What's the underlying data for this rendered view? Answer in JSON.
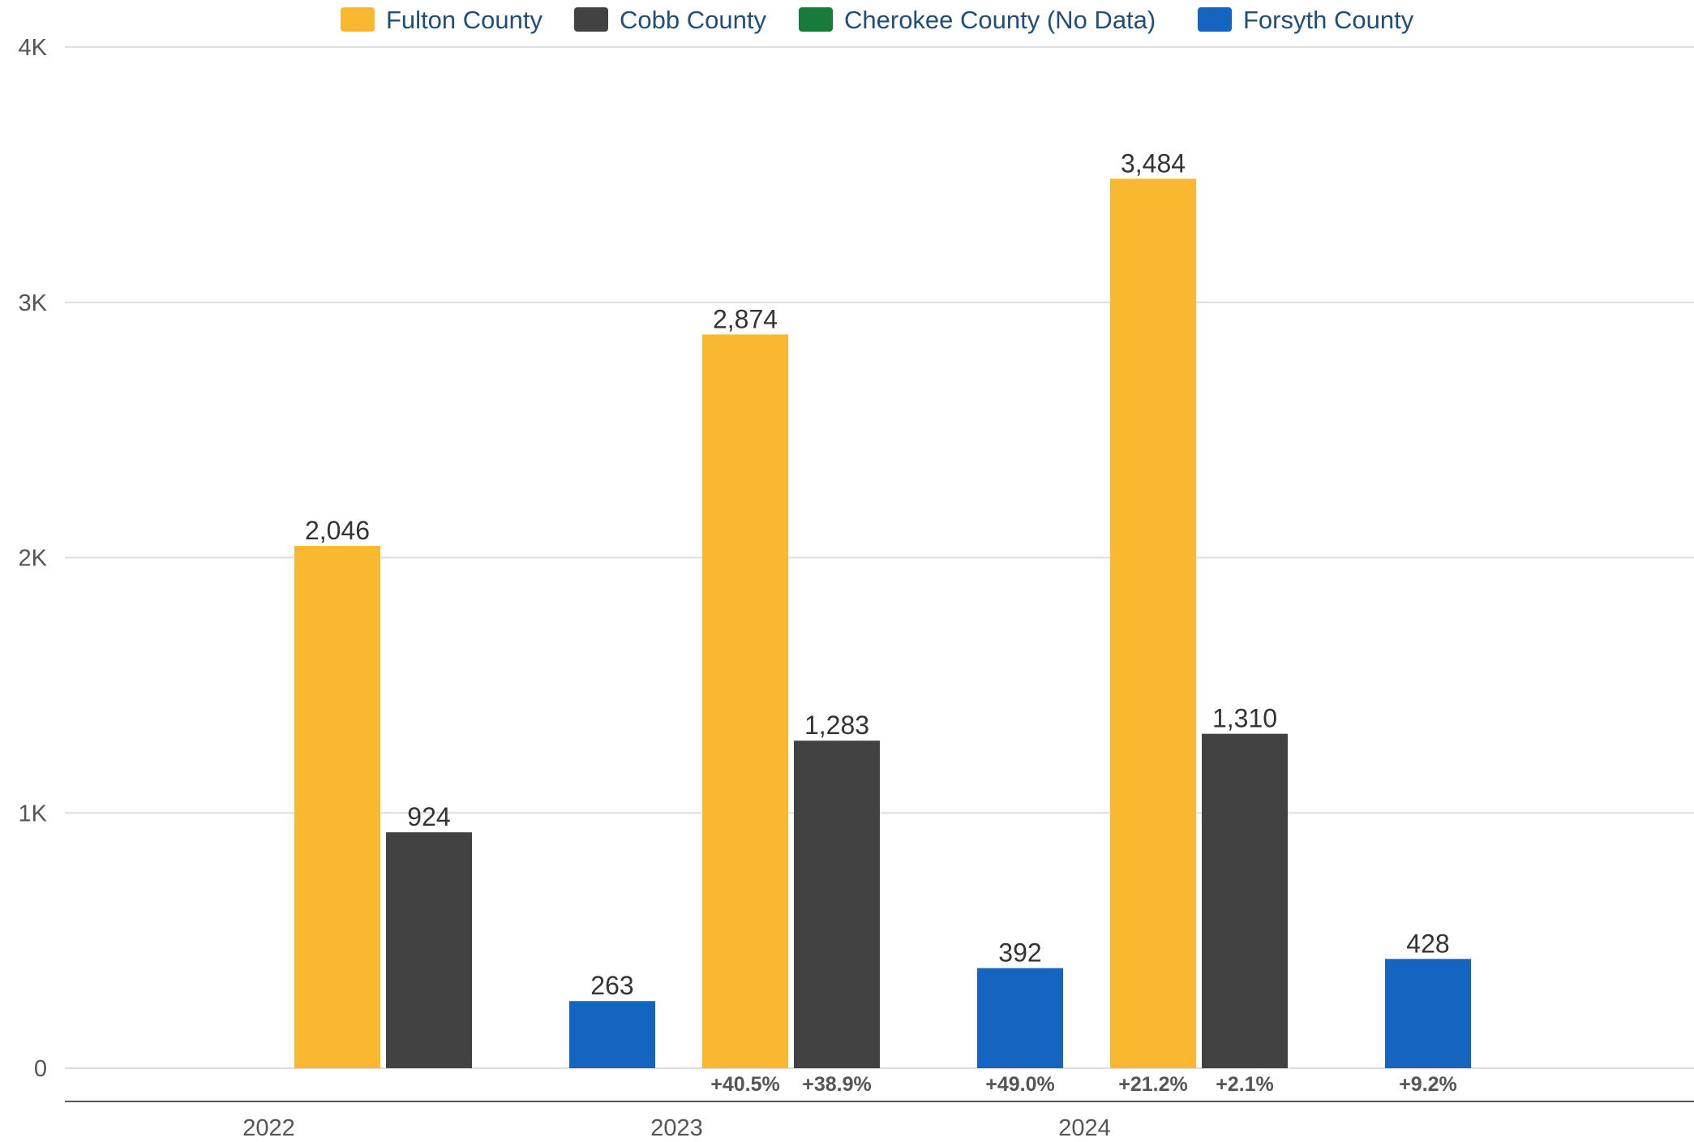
{
  "chart_data": {
    "type": "bar",
    "categories": [
      "2022",
      "2023",
      "2024"
    ],
    "series": [
      {
        "name": "Fulton County",
        "color": "#f9b82f",
        "values": [
          2046,
          2874,
          3484
        ],
        "labels": [
          "2,046",
          "2,874",
          "3,484"
        ],
        "changes": [
          null,
          "+40.5%",
          "+21.2%"
        ]
      },
      {
        "name": "Cobb County",
        "color": "#424242",
        "values": [
          924,
          1283,
          1310
        ],
        "labels": [
          "924",
          "1,283",
          "1,310"
        ],
        "changes": [
          null,
          "+38.9%",
          "+2.1%"
        ]
      },
      {
        "name": "Cherokee County (No Data)",
        "color": "#1a7a3c",
        "values": [
          null,
          null,
          null
        ],
        "labels": [
          null,
          null,
          null
        ],
        "changes": [
          null,
          null,
          null
        ]
      },
      {
        "name": "Forsyth County",
        "color": "#1565c0",
        "values": [
          263,
          392,
          428
        ],
        "labels": [
          "263",
          "392",
          "428"
        ],
        "changes": [
          null,
          "+49.0%",
          "+9.2%"
        ]
      }
    ],
    "yticks": [
      {
        "value": 0,
        "label": "0"
      },
      {
        "value": 1000,
        "label": "1K"
      },
      {
        "value": 2000,
        "label": "2K"
      },
      {
        "value": 3000,
        "label": "3K"
      },
      {
        "value": 4000,
        "label": "4K"
      }
    ],
    "ylim": [
      0,
      4000
    ],
    "grid": true,
    "legend": "top"
  }
}
